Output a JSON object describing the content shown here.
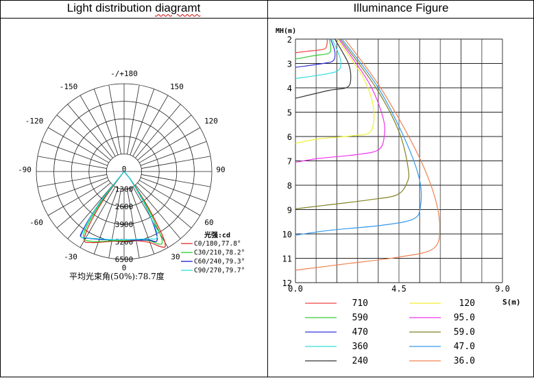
{
  "headers": {
    "left_title_a": "Light distribution ",
    "left_title_b": "diagramt",
    "right_title": "Illuminance Figure"
  },
  "chart_data": [
    {
      "type": "polar",
      "angle_labels": [
        "-/+180",
        "-150",
        "150",
        "-120",
        "120",
        "-90",
        "90",
        "-60",
        "60",
        "-30",
        "30",
        "0"
      ],
      "radial_labels": [
        "0",
        "1300",
        "2600",
        "3900",
        "5200",
        "6500"
      ],
      "rmax": 6500,
      "unit_label": "光强:cd",
      "footer": "平均光束角(50%):78.7度",
      "legend_position": "bottom-right",
      "series": [
        {
          "name": "C0/180,77.8°",
          "color": "#e02020",
          "points": [
            [
              -42,
              0
            ],
            [
              -36,
              2600
            ],
            [
              -33,
              4800
            ],
            [
              -30,
              5900
            ],
            [
              -25,
              5800
            ],
            [
              -18,
              5500
            ],
            [
              -10,
              5250
            ],
            [
              0,
              5150
            ],
            [
              10,
              5200
            ],
            [
              20,
              5600
            ],
            [
              26,
              6200
            ],
            [
              29,
              6300
            ],
            [
              31,
              5500
            ],
            [
              34,
              3200
            ],
            [
              38,
              1000
            ],
            [
              42,
              0
            ]
          ]
        },
        {
          "name": "C30/210,78.2°",
          "color": "#22cc22",
          "points": [
            [
              -43,
              0
            ],
            [
              -37,
              2800
            ],
            [
              -34,
              5000
            ],
            [
              -31,
              5800
            ],
            [
              -25,
              5700
            ],
            [
              -18,
              5450
            ],
            [
              -10,
              5200
            ],
            [
              0,
              5100
            ],
            [
              10,
              5150
            ],
            [
              20,
              5450
            ],
            [
              25,
              5900
            ],
            [
              28,
              6000
            ],
            [
              30,
              5300
            ],
            [
              33,
              3200
            ],
            [
              38,
              900
            ],
            [
              43,
              0
            ]
          ]
        },
        {
          "name": "C60/240,79.3°",
          "color": "#1010cc",
          "points": [
            [
              -44,
              0
            ],
            [
              -38,
              3000
            ],
            [
              -35,
              5400
            ],
            [
              -33,
              5800
            ],
            [
              -28,
              5600
            ],
            [
              -18,
              5300
            ],
            [
              -8,
              5100
            ],
            [
              0,
              5050
            ],
            [
              10,
              5150
            ],
            [
              20,
              5400
            ],
            [
              25,
              5700
            ],
            [
              28,
              5000
            ],
            [
              32,
              3000
            ],
            [
              38,
              800
            ],
            [
              44,
              0
            ]
          ]
        },
        {
          "name": "C90/270,79.7°",
          "color": "#20e0e0",
          "points": [
            [
              -45,
              0
            ],
            [
              -38,
              3000
            ],
            [
              -34,
              5600
            ],
            [
              -30,
              5650
            ],
            [
              -20,
              5300
            ],
            [
              -8,
              5100
            ],
            [
              0,
              5050
            ],
            [
              10,
              5100
            ],
            [
              20,
              5300
            ],
            [
              26,
              5500
            ],
            [
              29,
              4800
            ],
            [
              33,
              2500
            ],
            [
              40,
              500
            ],
            [
              45,
              0
            ]
          ]
        }
      ]
    },
    {
      "type": "line",
      "xlabel": "S(m)",
      "ylabel": "MH(m)",
      "xlim": [
        0,
        9
      ],
      "ylim": [
        2,
        12
      ],
      "y_inverted": true,
      "x_ticks": [
        "0.0",
        "4.5",
        "9.0"
      ],
      "y_ticks": [
        "2",
        "3",
        "4",
        "5",
        "6",
        "7",
        "8",
        "9",
        "10",
        "11",
        "12"
      ],
      "grid": true,
      "legend_position": "bottom",
      "series": [
        {
          "name": "710",
          "color": "#f04040",
          "points": [
            [
              1.39,
              2
            ],
            [
              1.35,
              2.3
            ],
            [
              1.2,
              2.42
            ],
            [
              0.5,
              2.5
            ],
            [
              0,
              2.56
            ]
          ]
        },
        {
          "name": "590",
          "color": "#33cc33",
          "points": [
            [
              1.46,
              2
            ],
            [
              1.53,
              2.3
            ],
            [
              1.45,
              2.58
            ],
            [
              0.8,
              2.68
            ],
            [
              0,
              2.82
            ]
          ]
        },
        {
          "name": "470",
          "color": "#3333dd",
          "points": [
            [
              1.53,
              2
            ],
            [
              1.71,
              2.5
            ],
            [
              1.65,
              2.88
            ],
            [
              1.2,
              3.0
            ],
            [
              0,
              3.16
            ]
          ]
        },
        {
          "name": "360",
          "color": "#33dddd",
          "points": [
            [
              1.59,
              2
            ],
            [
              1.95,
              2.8
            ],
            [
              1.9,
              3.25
            ],
            [
              1.4,
              3.42
            ],
            [
              0,
              3.62
            ]
          ]
        },
        {
          "name": "240",
          "color": "#333333",
          "points": [
            [
              1.71,
              2
            ],
            [
              2.3,
              3.0
            ],
            [
              2.4,
              3.7
            ],
            [
              2.2,
              4.0
            ],
            [
              1.5,
              4.1
            ],
            [
              0,
              4.43
            ]
          ]
        },
        {
          "name": "120",
          "color": "#f0f030",
          "points": [
            [
              1.8,
              2
            ],
            [
              2.9,
              3.5
            ],
            [
              3.35,
              4.6
            ],
            [
              3.4,
              5.4
            ],
            [
              3.2,
              5.85
            ],
            [
              2.5,
              5.97
            ],
            [
              1.0,
              6.1
            ],
            [
              0,
              6.28
            ]
          ]
        },
        {
          "name": "95.0",
          "color": "#ee33ee",
          "points": [
            [
              1.89,
              2
            ],
            [
              3.2,
              3.8
            ],
            [
              3.8,
              5.2
            ],
            [
              3.86,
              6.0
            ],
            [
              3.6,
              6.55
            ],
            [
              2.6,
              6.75
            ],
            [
              1.0,
              6.9
            ],
            [
              0,
              7.06
            ]
          ]
        },
        {
          "name": "59.0",
          "color": "#808020",
          "points": [
            [
              1.95,
              2
            ],
            [
              3.5,
              4.0
            ],
            [
              4.5,
              5.8
            ],
            [
              4.9,
              7.3
            ],
            [
              4.85,
              7.9
            ],
            [
              4.4,
              8.4
            ],
            [
              3.2,
              8.6
            ],
            [
              1.5,
              8.8
            ],
            [
              0,
              8.97
            ]
          ]
        },
        {
          "name": "47.0",
          "color": "#3399ee",
          "points": [
            [
              2.02,
              2
            ],
            [
              3.6,
              4.0
            ],
            [
              4.8,
              6.2
            ],
            [
              5.4,
              7.8
            ],
            [
              5.43,
              8.9
            ],
            [
              5.1,
              9.4
            ],
            [
              3.7,
              9.65
            ],
            [
              1.5,
              9.85
            ],
            [
              0,
              10.05
            ]
          ]
        },
        {
          "name": "36.0",
          "color": "#f08050",
          "points": [
            [
              2.15,
              2
            ],
            [
              3.7,
              4.0
            ],
            [
              5.2,
              6.5
            ],
            [
              6.0,
              8.3
            ],
            [
              6.27,
              9.7
            ],
            [
              6.0,
              10.6
            ],
            [
              4.5,
              10.95
            ],
            [
              2.0,
              11.25
            ],
            [
              0,
              11.49
            ]
          ]
        }
      ]
    }
  ]
}
